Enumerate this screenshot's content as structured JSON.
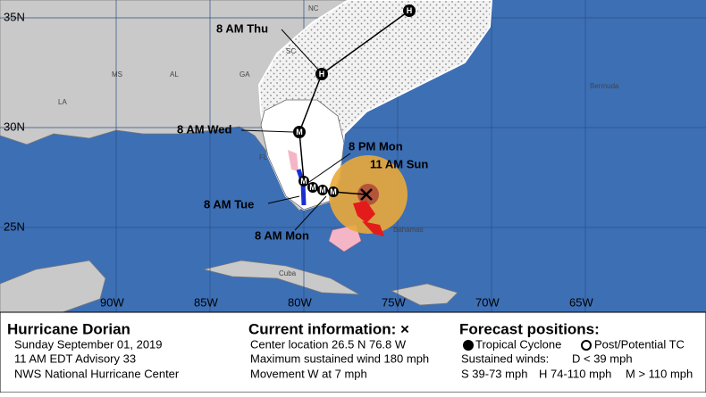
{
  "map": {
    "lat_labels": [
      "35N",
      "30N",
      "25N"
    ],
    "lon_labels": [
      "90W",
      "85W",
      "80W",
      "75W",
      "70W",
      "65W"
    ],
    "places": [
      "NC",
      "SC",
      "GA",
      "AL",
      "MS",
      "LA",
      "FL",
      "Bermuda",
      "Cuba",
      "Bahamas"
    ],
    "forecast_labels": [
      "8 AM Thu",
      "8 AM Wed",
      "8 PM Mon",
      "11 AM Sun",
      "8 AM Tue",
      "8 AM Mon"
    ],
    "markers": [
      "H",
      "H",
      "M",
      "M",
      "M",
      "M",
      "M"
    ]
  },
  "legend": {
    "storm": {
      "name": "Hurricane Dorian",
      "date": "Sunday September 01, 2019",
      "advisory": "11 AM EDT Advisory 33",
      "source": "NWS National Hurricane Center"
    },
    "current": {
      "title": "Current information: ×",
      "location": "Center location 26.5 N 76.8 W",
      "wind": "Maximum sustained wind 180 mph",
      "movement": "Movement W at 7 mph"
    },
    "forecast": {
      "title": "Forecast positions:",
      "tropical": "Tropical Cyclone",
      "post": "Post/Potential TC",
      "winds_title": "Sustained winds:",
      "d": "D < 39 mph",
      "s": "S 39-73 mph",
      "h": "H 74-110 mph",
      "m": "M > 110 mph"
    }
  }
}
